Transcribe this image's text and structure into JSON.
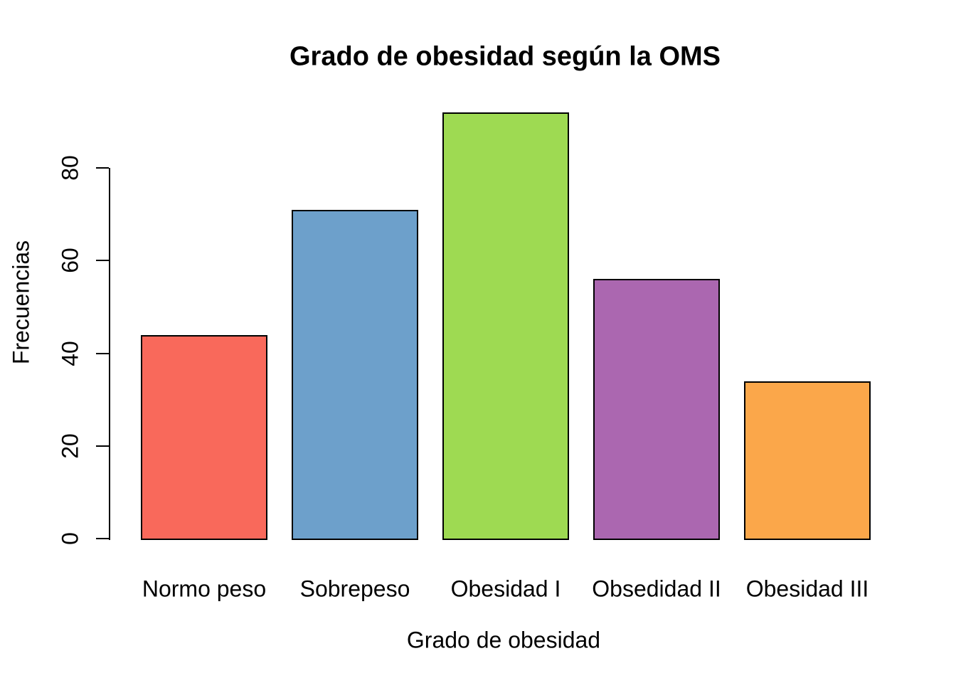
{
  "chart_data": {
    "type": "bar",
    "title": "Grado de obesidad según la OMS",
    "xlabel": "Grado de obesidad",
    "ylabel": "Frecuencias",
    "categories": [
      "Normo peso",
      "Sobrepeso",
      "Obesidad I",
      "Obsedidad II",
      "Obesidad III"
    ],
    "values": [
      44,
      71,
      92,
      56,
      34
    ],
    "bar_colors": [
      "#F9695B",
      "#6DA0CB",
      "#9EDA52",
      "#AB67B0",
      "#FBA74A"
    ],
    "bar_border_color": "#000000",
    "y_ticks": [
      0,
      20,
      40,
      60,
      80
    ],
    "ylim": [
      0,
      95
    ],
    "grid": false,
    "legend": null,
    "background_color": "#FFFFFF",
    "text_color": "#000000"
  }
}
